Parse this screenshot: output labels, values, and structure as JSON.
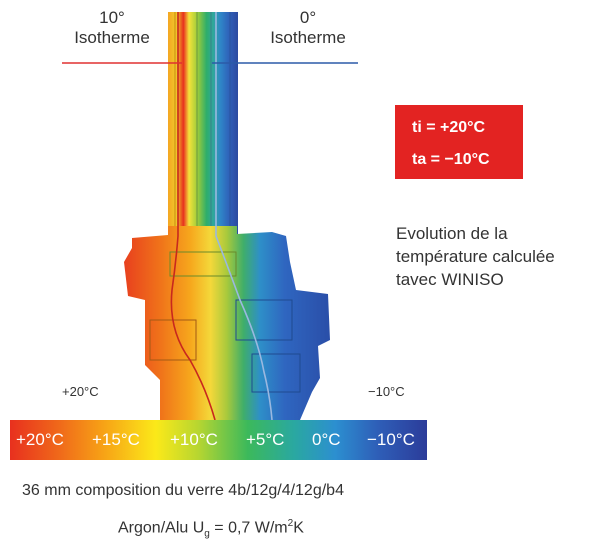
{
  "isotherm_left": {
    "degree": "10°",
    "label": "Isotherme",
    "color": "#e03030"
  },
  "isotherm_right": {
    "degree": "0°",
    "label": "Isotherme",
    "color": "#2b5aa8"
  },
  "temp_box": {
    "ti": "ti = +20°C",
    "ta": "ta = −10°C",
    "color": "#e32322"
  },
  "description": [
    "Evolution de la",
    "température calculée",
    "tavec WINISO"
  ],
  "side_temps": {
    "left": "+20°C",
    "right": "−10°C"
  },
  "scale": {
    "labels": [
      "+20°C",
      "+15°C",
      "+10°C",
      "+5°C",
      "0°C",
      "−10°C"
    ]
  },
  "composition": "36 mm composition du verre 4b/12g/4/12g/b4",
  "argon": {
    "prefix": "Argon/Alu U",
    "sub": "g",
    "value": " = 0,7 W/m",
    "sup": "2",
    "suffix": "K"
  }
}
